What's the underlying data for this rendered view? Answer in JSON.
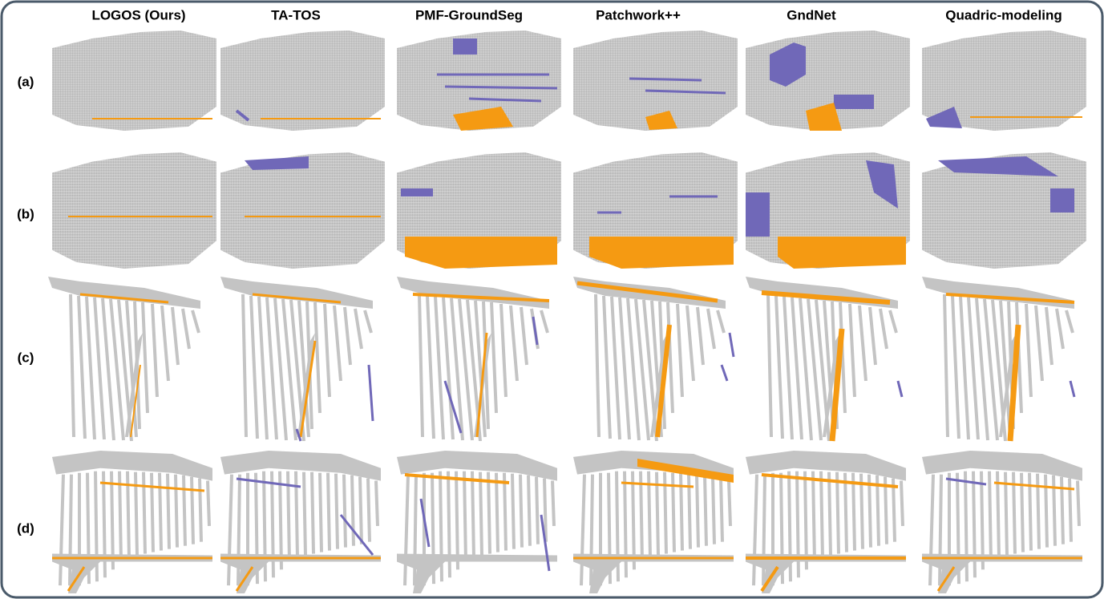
{
  "headers": [
    "LOGOS (Ours)",
    "TA-TOS",
    "PMF-GroundSeg",
    "Patchwork++",
    "GndNet",
    "Quadric-modeling"
  ],
  "row_labels": [
    "(a)",
    "(b)",
    "(c)",
    "(d)"
  ]
}
